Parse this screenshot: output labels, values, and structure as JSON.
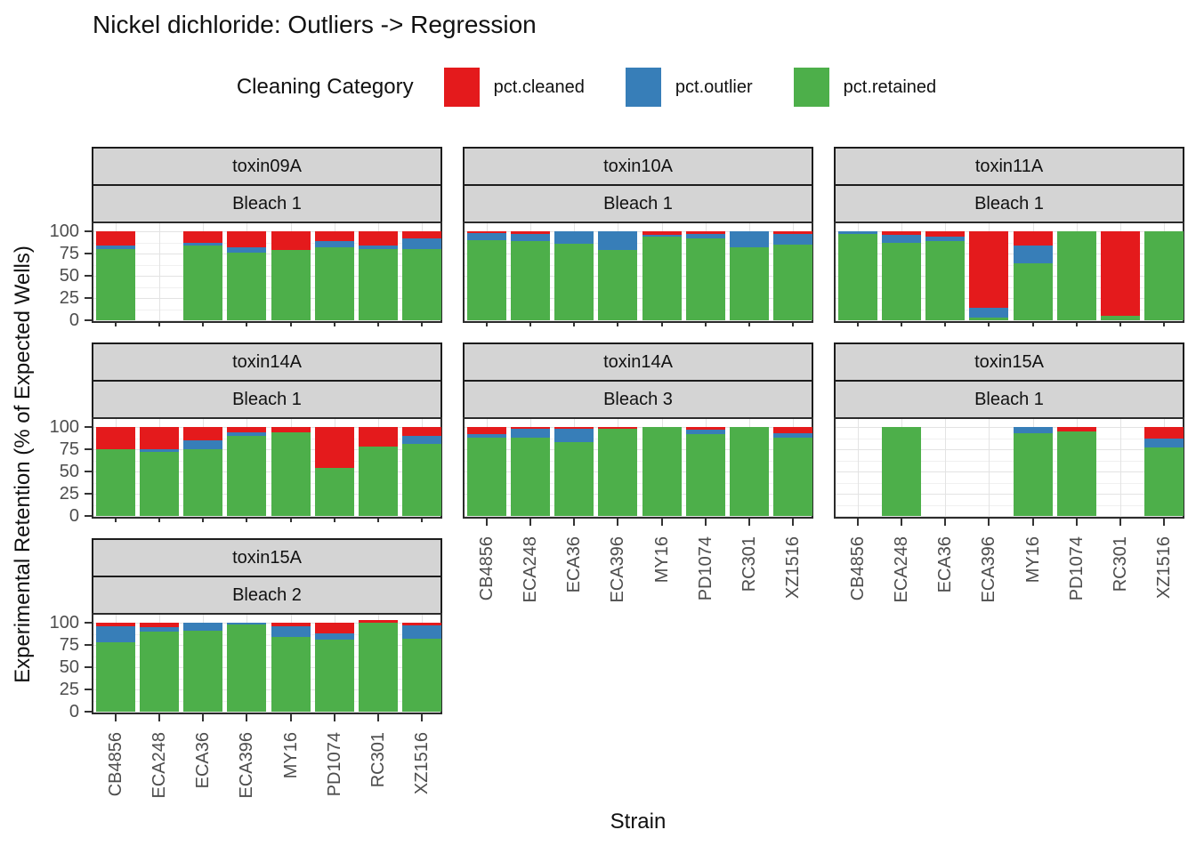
{
  "title": "Nickel dichloride: Outliers -> Regression",
  "legend": {
    "title": "Cleaning Category",
    "items": [
      {
        "label": "pct.cleaned",
        "color": "#e41a1c"
      },
      {
        "label": "pct.outlier",
        "color": "#377eb8"
      },
      {
        "label": "pct.retained",
        "color": "#4daf4a"
      }
    ]
  },
  "axes": {
    "x_title": "Strain",
    "y_title": "Experimental Retention (% of Expected Wells)"
  },
  "chart_data": {
    "type": "bar",
    "stacked": true,
    "title": "Nickel dichloride: Outliers -> Regression",
    "xlabel": "Strain",
    "ylabel": "Experimental Retention (% of Expected Wells)",
    "ylim": [
      0,
      100
    ],
    "yticks": [
      0,
      25,
      50,
      75,
      100
    ],
    "yticks_minor": [
      12.5,
      37.5,
      62.5,
      87.5
    ],
    "grid": true,
    "legend_position": "top",
    "legend_title": "Cleaning Category",
    "categories": [
      "CB4856",
      "ECA248",
      "ECA36",
      "ECA396",
      "MY16",
      "PD1074",
      "RC301",
      "XZ1516"
    ],
    "stack_order": [
      "pct.retained",
      "pct.outlier",
      "pct.cleaned"
    ],
    "colors": {
      "pct.cleaned": "#e41a1c",
      "pct.outlier": "#377eb8",
      "pct.retained": "#4daf4a"
    },
    "panels": [
      {
        "toxin": "toxin09A",
        "bleach": "Bleach 1",
        "row": 0,
        "col": 0,
        "x_labels": false,
        "series": {
          "pct.retained": [
            80,
            null,
            84,
            76,
            79,
            82,
            80,
            80
          ],
          "pct.outlier": [
            4,
            null,
            3,
            6,
            0,
            7,
            4,
            12
          ],
          "pct.cleaned": [
            16,
            null,
            13,
            18,
            21,
            11,
            16,
            8
          ]
        }
      },
      {
        "toxin": "toxin10A",
        "bleach": "Bleach 1",
        "row": 0,
        "col": 1,
        "x_labels": false,
        "series": {
          "pct.retained": [
            90,
            89,
            86,
            79,
            94,
            92,
            82,
            85
          ],
          "pct.outlier": [
            8,
            8,
            14,
            21,
            2,
            5,
            18,
            12
          ],
          "pct.cleaned": [
            2,
            3,
            0,
            0,
            4,
            3,
            0,
            3
          ]
        }
      },
      {
        "toxin": "toxin11A",
        "bleach": "Bleach 1",
        "row": 0,
        "col": 2,
        "x_labels": false,
        "series": {
          "pct.retained": [
            97,
            87,
            89,
            3,
            64,
            100,
            5,
            100
          ],
          "pct.outlier": [
            3,
            9,
            5,
            11,
            20,
            0,
            0,
            0
          ],
          "pct.cleaned": [
            0,
            4,
            6,
            86,
            16,
            0,
            95,
            0
          ]
        }
      },
      {
        "toxin": "toxin14A",
        "bleach": "Bleach 1",
        "row": 1,
        "col": 0,
        "x_labels": false,
        "series": {
          "pct.retained": [
            75,
            72,
            75,
            90,
            94,
            54,
            78,
            81
          ],
          "pct.outlier": [
            0,
            3,
            10,
            4,
            0,
            0,
            0,
            9
          ],
          "pct.cleaned": [
            25,
            25,
            15,
            6,
            6,
            46,
            22,
            10
          ]
        }
      },
      {
        "toxin": "toxin14A",
        "bleach": "Bleach 3",
        "row": 1,
        "col": 1,
        "x_labels": true,
        "series": {
          "pct.retained": [
            88,
            88,
            83,
            98,
            100,
            92,
            100,
            88
          ],
          "pct.outlier": [
            4,
            10,
            15,
            0,
            0,
            5,
            0,
            5
          ],
          "pct.cleaned": [
            8,
            2,
            2,
            2,
            0,
            3,
            0,
            7
          ]
        }
      },
      {
        "toxin": "toxin15A",
        "bleach": "Bleach 1",
        "row": 1,
        "col": 2,
        "x_labels": true,
        "series": {
          "pct.retained": [
            null,
            100,
            null,
            null,
            93,
            95,
            null,
            77
          ],
          "pct.outlier": [
            null,
            0,
            null,
            null,
            7,
            0,
            null,
            10
          ],
          "pct.cleaned": [
            null,
            0,
            null,
            null,
            0,
            5,
            null,
            13
          ]
        }
      },
      {
        "toxin": "toxin15A",
        "bleach": "Bleach 2",
        "row": 2,
        "col": 0,
        "x_labels": true,
        "series": {
          "pct.retained": [
            78,
            90,
            91,
            98,
            84,
            81,
            100,
            82
          ],
          "pct.outlier": [
            18,
            5,
            9,
            2,
            12,
            7,
            0,
            15
          ],
          "pct.cleaned": [
            4,
            5,
            0,
            0,
            4,
            12,
            3,
            3
          ]
        }
      }
    ]
  }
}
